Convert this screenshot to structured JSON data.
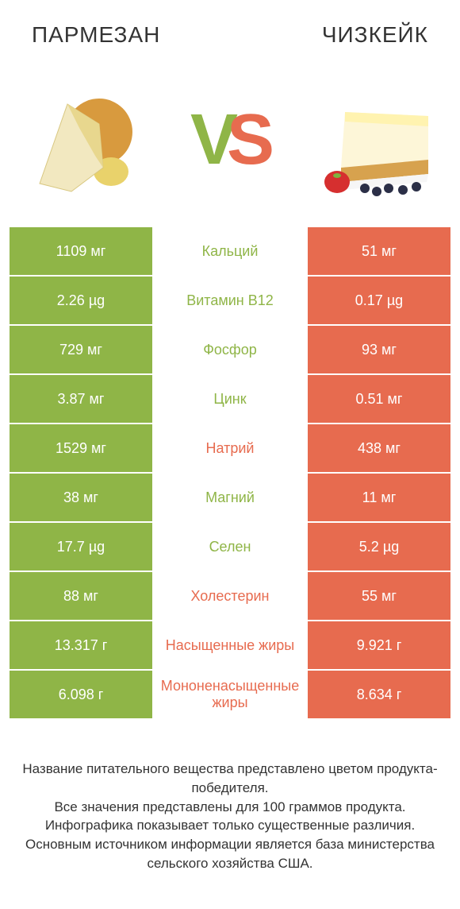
{
  "colors": {
    "left": "#8fb547",
    "right": "#e76b4f",
    "text": "#333333",
    "white": "#ffffff"
  },
  "header": {
    "left": "ПАРМЕЗАН",
    "right": "ЧИЗКЕЙК"
  },
  "vs": {
    "v": "V",
    "s": "S"
  },
  "rows": [
    {
      "left": "1109 мг",
      "mid": "Кальций",
      "right": "51 мг",
      "winner": "left"
    },
    {
      "left": "2.26 µg",
      "mid": "Витамин B12",
      "right": "0.17 µg",
      "winner": "left"
    },
    {
      "left": "729 мг",
      "mid": "Фосфор",
      "right": "93 мг",
      "winner": "left"
    },
    {
      "left": "3.87 мг",
      "mid": "Цинк",
      "right": "0.51 мг",
      "winner": "left"
    },
    {
      "left": "1529 мг",
      "mid": "Натрий",
      "right": "438 мг",
      "winner": "right"
    },
    {
      "left": "38 мг",
      "mid": "Магний",
      "right": "11 мг",
      "winner": "left"
    },
    {
      "left": "17.7 µg",
      "mid": "Селен",
      "right": "5.2 µg",
      "winner": "left"
    },
    {
      "left": "88 мг",
      "mid": "Холестерин",
      "right": "55 мг",
      "winner": "right"
    },
    {
      "left": "13.317 г",
      "mid": "Насыщенные жиры",
      "right": "9.921 г",
      "winner": "right"
    },
    {
      "left": "6.098 г",
      "mid": "Мононенасыщенные жиры",
      "right": "8.634 г",
      "winner": "right"
    }
  ],
  "footer": "Название питательного вещества представлено цветом продукта-победителя.\nВсе значения представлены для 100 граммов продукта.\nИнфографика показывает только существенные различия.\nОсновным источником информации является база министерства сельского хозяйства США."
}
